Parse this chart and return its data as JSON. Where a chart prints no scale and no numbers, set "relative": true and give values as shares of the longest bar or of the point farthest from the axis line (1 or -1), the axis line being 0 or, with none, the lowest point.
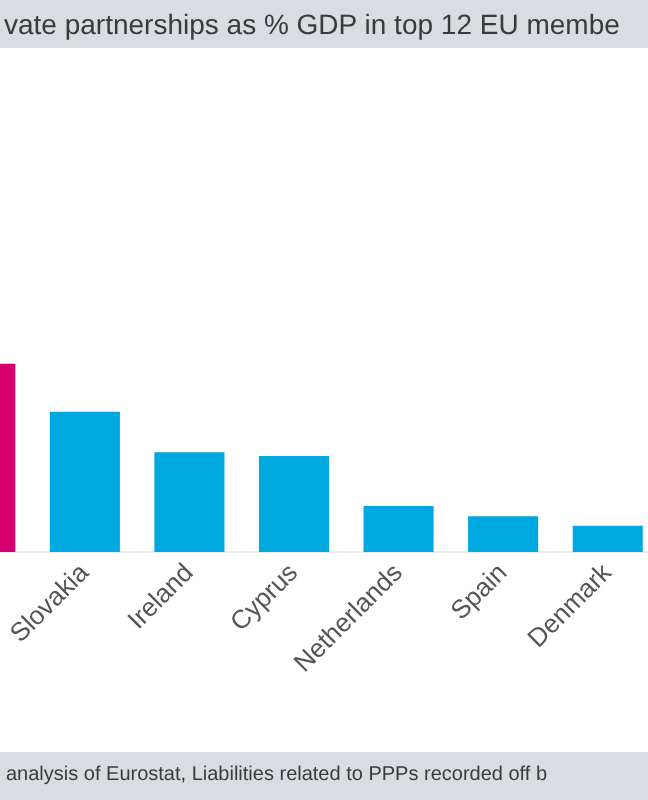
{
  "chart_data": {
    "type": "bar",
    "title": "vate partnerships as % GDP in top 12 EU membe",
    "categories": [
      null,
      "Slovakia",
      "Ireland",
      "Cyprus",
      "Netherlands",
      "Spain",
      "Denmark"
    ],
    "values": [
      1,
      0.745,
      0.53,
      0.51,
      0.245,
      0.19,
      0.14
    ],
    "colors": [
      "#d4006f",
      "#00a8e0",
      "#00a8e0",
      "#00a8e0",
      "#00a8e0",
      "#00a8e0",
      "#00a8e0"
    ],
    "relative": true,
    "annotations": [
      "analysis of Eurostat, Liabilities related to PPPs recorded off b"
    ]
  }
}
